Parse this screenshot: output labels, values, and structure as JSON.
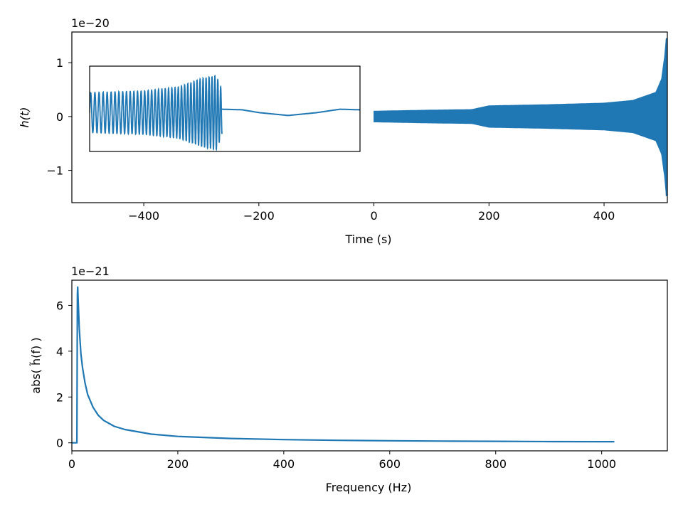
{
  "chart_data": [
    {
      "type": "line",
      "title": "",
      "xlabel": "Time (s)",
      "ylabel": "h(t)",
      "offset_text": "1e−20",
      "xlim": [
        -525,
        510
      ],
      "ylim": [
        -1.6,
        1.57
      ],
      "y_scale_factor": 1e-20,
      "xticks": [
        -400,
        -200,
        0,
        200,
        400
      ],
      "xtick_labels": [
        "−400",
        "−200",
        "0",
        "200",
        "400"
      ],
      "yticks": [
        -1,
        0,
        1
      ],
      "ytick_labels": [
        "−1",
        "0",
        "1"
      ],
      "grid": false,
      "color": "#1f77b4",
      "series": [
        {
          "description_kind": "chirp waveform",
          "x_start": 0,
          "x_end": 510,
          "amplitude_envelope": [
            {
              "x": 0,
              "amp": 0.1
            },
            {
              "x": 100,
              "amp": 0.12
            },
            {
              "x": 170,
              "amp": 0.13
            },
            {
              "x": 200,
              "amp": 0.2
            },
            {
              "x": 300,
              "amp": 0.22
            },
            {
              "x": 400,
              "amp": 0.25
            },
            {
              "x": 450,
              "amp": 0.3
            },
            {
              "x": 490,
              "amp": 0.45
            },
            {
              "x": 500,
              "amp": 0.7
            },
            {
              "x": 505,
              "amp": 1.1
            },
            {
              "x": 508,
              "amp": 1.45
            }
          ]
        }
      ],
      "inset": {
        "xlim_data": [
          -495,
          -25
        ],
        "series": [
          {
            "segment": "oscillating",
            "x_range": [
              -495,
              -265
            ],
            "amplitude_envelope": [
              {
                "x": -495,
                "amp": 0.35
              },
              {
                "x": -400,
                "amp": 0.38
              },
              {
                "x": -340,
                "amp": 0.45
              },
              {
                "x": -300,
                "amp": 0.6
              },
              {
                "x": -275,
                "amp": 0.65
              },
              {
                "x": -265,
                "amp": 0.4
              }
            ],
            "center": 0.1
          },
          {
            "segment": "smooth",
            "x_range": [
              -265,
              -25
            ],
            "y_points": [
              {
                "x": -265,
                "y": 0.18
              },
              {
                "x": -230,
                "y": 0.17
              },
              {
                "x": -200,
                "y": 0.12
              },
              {
                "x": -150,
                "y": 0.07
              },
              {
                "x": -100,
                "y": 0.12
              },
              {
                "x": -60,
                "y": 0.18
              },
              {
                "x": -25,
                "y": 0.17
              }
            ]
          }
        ]
      }
    },
    {
      "type": "line",
      "title": "",
      "xlabel": "Frequency (Hz)",
      "ylabel": "abs( h̃(f) )",
      "offset_text": "1e−21",
      "xlim": [
        0,
        1124
      ],
      "ylim": [
        -0.35,
        7.1
      ],
      "y_scale_factor": 1e-21,
      "xticks": [
        0,
        200,
        400,
        600,
        800,
        1000
      ],
      "xtick_labels": [
        "0",
        "200",
        "400",
        "600",
        "800",
        "1000"
      ],
      "yticks": [
        0,
        2,
        4,
        6
      ],
      "ytick_labels": [
        "0",
        "2",
        "4",
        "6"
      ],
      "grid": false,
      "color": "#1f77b4",
      "series": [
        {
          "x": [
            0,
            9.5,
            10,
            10.5,
            11,
            12,
            14,
            17,
            20,
            25,
            30,
            40,
            50,
            60,
            80,
            100,
            150,
            200,
            300,
            400,
            500,
            600,
            700,
            800,
            900,
            1000,
            1024
          ],
          "values": [
            0,
            0,
            3.0,
            6.5,
            6.8,
            6.2,
            5.0,
            3.9,
            3.3,
            2.6,
            2.1,
            1.55,
            1.2,
            0.98,
            0.72,
            0.58,
            0.38,
            0.28,
            0.19,
            0.14,
            0.11,
            0.09,
            0.075,
            0.065,
            0.055,
            0.05,
            0.05
          ]
        }
      ]
    }
  ]
}
